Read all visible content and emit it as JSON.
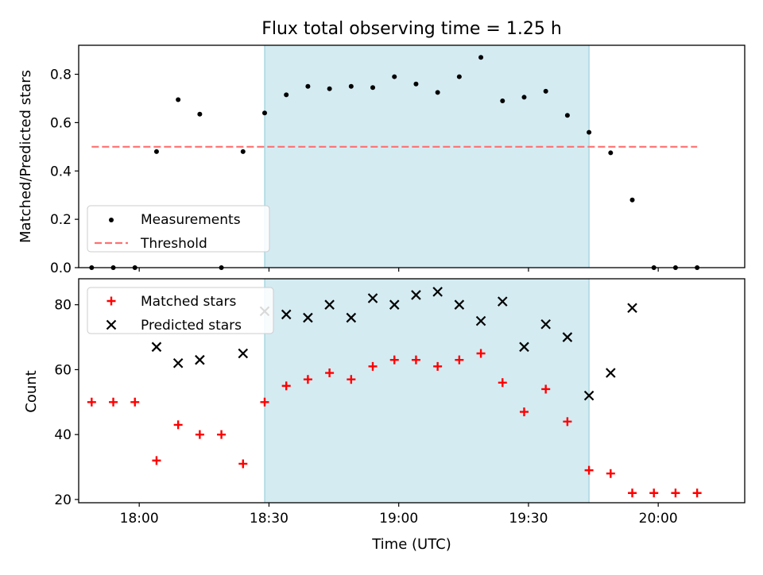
{
  "chart_data": [
    {
      "type": "scatter",
      "title": "Flux total observing time = 1.25 h",
      "xlabel": "",
      "ylabel": "Matched/Predicted stars",
      "xlim": [
        "17:46",
        "20:20"
      ],
      "ylim": [
        0,
        0.92
      ],
      "yticks": [
        0.0,
        0.2,
        0.4,
        0.6,
        0.8
      ],
      "ytick_labels": [
        "0.0",
        "0.2",
        "0.4",
        "0.6",
        "0.8"
      ],
      "highlight_span": [
        "18:29",
        "19:44"
      ],
      "highlight_color": "#add8e6",
      "legend_position": "lower-left",
      "series": [
        {
          "name": "Measurements",
          "marker": "dot",
          "color": "#000000",
          "x": [
            "17:49",
            "17:54",
            "17:59",
            "18:04",
            "18:09",
            "18:14",
            "18:19",
            "18:24",
            "18:29",
            "18:34",
            "18:39",
            "18:44",
            "18:49",
            "18:54",
            "18:59",
            "19:04",
            "19:09",
            "19:14",
            "19:19",
            "19:24",
            "19:29",
            "19:34",
            "19:39",
            "19:44",
            "19:49",
            "19:54",
            "19:59",
            "20:04",
            "20:09"
          ],
          "y": [
            0.0,
            0.0,
            0.0,
            0.48,
            0.695,
            0.635,
            0.0,
            0.48,
            0.64,
            0.715,
            0.75,
            0.74,
            0.75,
            0.745,
            0.79,
            0.76,
            0.725,
            0.79,
            0.87,
            0.69,
            0.705,
            0.73,
            0.63,
            0.56,
            0.475,
            0.28,
            0.0,
            0.0,
            0.0
          ]
        },
        {
          "name": "Threshold",
          "marker": "dashed-line",
          "color": "#ff7070",
          "x": [
            "17:49",
            "20:09"
          ],
          "y": [
            0.5,
            0.5
          ]
        }
      ]
    },
    {
      "type": "scatter",
      "title": "",
      "xlabel": "Time (UTC)",
      "ylabel": "Count",
      "xlim": [
        "17:46",
        "20:20"
      ],
      "ylim": [
        19,
        88
      ],
      "yticks": [
        20,
        40,
        60,
        80
      ],
      "ytick_labels": [
        "20",
        "40",
        "60",
        "80"
      ],
      "xticks": [
        "18:00",
        "18:30",
        "19:00",
        "19:30",
        "20:00"
      ],
      "xtick_labels": [
        "18:00",
        "18:30",
        "19:00",
        "19:30",
        "20:00"
      ],
      "highlight_span": [
        "18:29",
        "19:44"
      ],
      "highlight_color": "#add8e6",
      "legend_position": "upper-left",
      "series": [
        {
          "name": "Matched stars",
          "marker": "plus",
          "color": "#ff0000",
          "x": [
            "17:49",
            "17:54",
            "17:59",
            "18:04",
            "18:09",
            "18:14",
            "18:19",
            "18:24",
            "18:29",
            "18:34",
            "18:39",
            "18:44",
            "18:49",
            "18:54",
            "18:59",
            "19:04",
            "19:09",
            "19:14",
            "19:19",
            "19:24",
            "19:29",
            "19:34",
            "19:39",
            "19:44",
            "19:49",
            "19:54",
            "19:59",
            "20:04",
            "20:09"
          ],
          "y": [
            50,
            50,
            50,
            32,
            43,
            40,
            40,
            31,
            50,
            55,
            57,
            59,
            57,
            61,
            63,
            63,
            61,
            63,
            65,
            56,
            47,
            54,
            44,
            29,
            28,
            22,
            22,
            22,
            22
          ]
        },
        {
          "name": "Predicted stars",
          "marker": "x",
          "color": "#000000",
          "x": [
            "18:04",
            "18:09",
            "18:14",
            "18:24",
            "18:29",
            "18:34",
            "18:39",
            "18:44",
            "18:49",
            "18:54",
            "18:59",
            "19:04",
            "19:09",
            "19:14",
            "19:19",
            "19:24",
            "19:29",
            "19:34",
            "19:39",
            "19:44",
            "19:49",
            "19:54"
          ],
          "y": [
            67,
            62,
            63,
            65,
            78,
            77,
            76,
            80,
            76,
            82,
            80,
            83,
            84,
            80,
            75,
            81,
            67,
            74,
            70,
            52,
            59,
            79
          ]
        }
      ]
    }
  ]
}
